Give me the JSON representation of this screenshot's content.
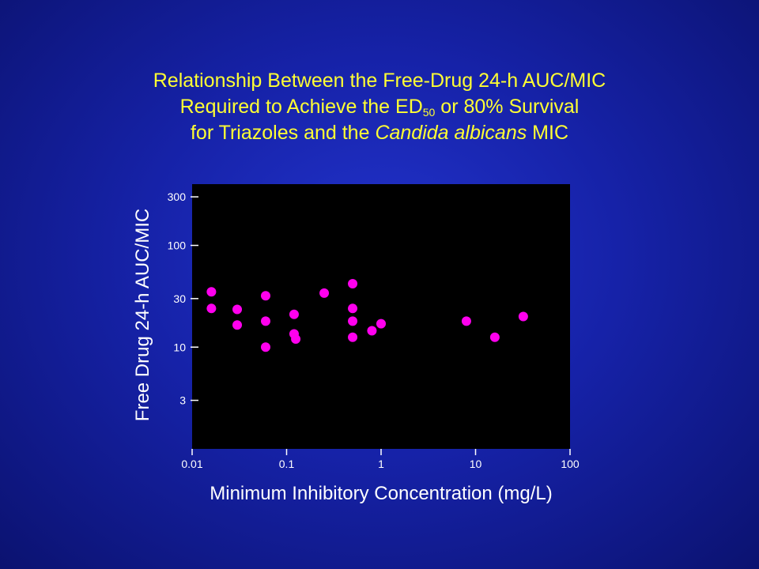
{
  "title": {
    "line1": "Relationship Between the Free-Drug 24-h AUC/MIC",
    "line2_pre": "Required to Achieve the ED",
    "line2_sub": "50",
    "line2_post": " or 80% Survival",
    "line3_pre": "for Triazoles and the ",
    "line3_italic": "Candida albicans",
    "line3_post": " MIC"
  },
  "colors": {
    "background": "#1622a8",
    "title": "#ffff33",
    "plot_area": "#000000",
    "points": "#ff00ee",
    "axis": "#ffffff"
  },
  "chart_data": {
    "type": "scatter",
    "xlabel": "Minimum Inhibitory Concentration (mg/L)",
    "ylabel": "Free Drug 24-h AUC/MIC",
    "xscale": "log",
    "yscale": "log",
    "xlim": [
      0.01,
      100
    ],
    "ylim": [
      1,
      400
    ],
    "xticks": [
      0.01,
      0.1,
      1,
      10,
      100
    ],
    "xtick_labels": [
      "0.01",
      "0.1",
      "1",
      "10",
      "100"
    ],
    "yticks": [
      3,
      10,
      30,
      100,
      300
    ],
    "ytick_labels": [
      "3",
      "10",
      "30",
      "100",
      "300"
    ],
    "grid": false,
    "points": [
      {
        "x": 0.016,
        "y": 35
      },
      {
        "x": 0.016,
        "y": 24
      },
      {
        "x": 0.03,
        "y": 23.5
      },
      {
        "x": 0.03,
        "y": 16.5
      },
      {
        "x": 0.06,
        "y": 32
      },
      {
        "x": 0.06,
        "y": 18
      },
      {
        "x": 0.06,
        "y": 10
      },
      {
        "x": 0.12,
        "y": 21
      },
      {
        "x": 0.12,
        "y": 13.5
      },
      {
        "x": 0.125,
        "y": 12
      },
      {
        "x": 0.25,
        "y": 34
      },
      {
        "x": 0.5,
        "y": 42
      },
      {
        "x": 0.5,
        "y": 24
      },
      {
        "x": 0.5,
        "y": 18
      },
      {
        "x": 0.5,
        "y": 12.5
      },
      {
        "x": 0.8,
        "y": 14.5
      },
      {
        "x": 1,
        "y": 17
      },
      {
        "x": 8,
        "y": 18
      },
      {
        "x": 16,
        "y": 12.5
      },
      {
        "x": 32,
        "y": 20
      }
    ]
  }
}
